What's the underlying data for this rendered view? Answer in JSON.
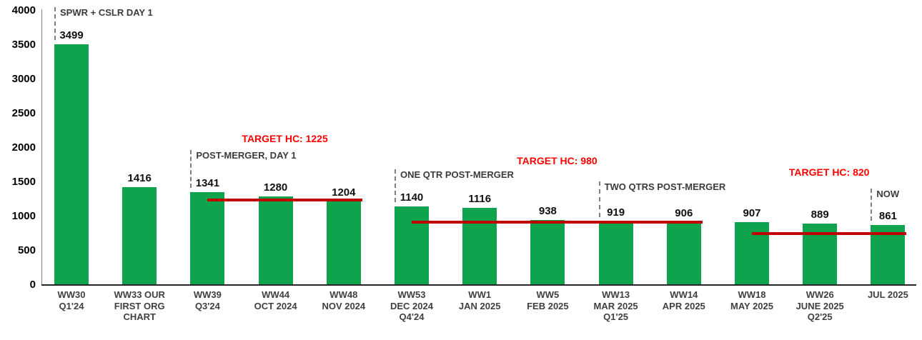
{
  "chart_data": {
    "type": "bar",
    "title": "",
    "xlabel": "",
    "ylabel": "",
    "ylim": [
      0,
      4000
    ],
    "ytick_step": 500,
    "grid": false,
    "legend": false,
    "bar_color": "#10A34E",
    "target_line_color": "#C00000",
    "target_label_color": "#FF0000",
    "annotation_color": "#3B3B3B",
    "dashed_line_color": "#7F7F7F",
    "categories": [
      "WW30\nQ1'24",
      "WW33 OUR\nFIRST ORG\nCHART",
      "WW39\nQ3'24",
      "WW44\nOCT 2024",
      "WW48\nNOV 2024",
      "WW53\nDEC 2024\nQ4'24",
      "WW1\nJAN 2025",
      "WW5\nFEB 2025",
      "WW13\nMAR 2025\nQ1'25",
      "WW14\nAPR 2025",
      "WW18\nMAY 2025",
      "WW26\nJUNE 2025\nQ2'25",
      "JUL 2025"
    ],
    "values": [
      3499,
      1416,
      1341,
      1280,
      1204,
      1140,
      1116,
      938,
      919,
      906,
      907,
      889,
      861
    ],
    "target_lines": [
      {
        "label": "TARGET HC: 1225",
        "value": 1225,
        "draw_level": 1225,
        "from": 2,
        "to": 4
      },
      {
        "label": "TARGET HC: 980",
        "value": 980,
        "draw_level": 905,
        "from": 5,
        "to": 9
      },
      {
        "label": "TARGET HC: 820",
        "value": 820,
        "draw_level": 740,
        "from": 10,
        "to": 12
      }
    ],
    "annotations": [
      {
        "text": "SPWR + CSLR DAY 1",
        "bar": 0,
        "top": 10
      },
      {
        "text": "POST-MERGER, DAY 1",
        "bar": 2,
        "top": 210
      },
      {
        "text": "ONE QTR POST-MERGER",
        "bar": 5,
        "top": 237
      },
      {
        "text": "TWO QTRS POST-MERGER",
        "bar": 8,
        "top": 254
      },
      {
        "text": "NOW",
        "bar": 12,
        "top": 264
      }
    ]
  }
}
